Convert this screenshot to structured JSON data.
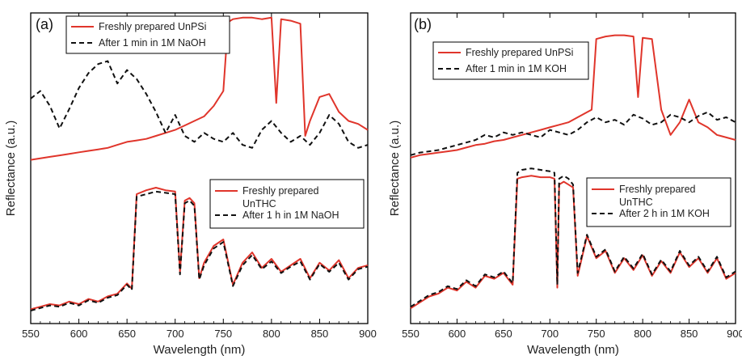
{
  "colors": {
    "fresh": "#e0352b",
    "treated": "#111111",
    "frame": "#000000"
  },
  "chart_data": [
    {
      "type": "line",
      "panel_label": "(a)",
      "xlabel": "Wavelength (nm)",
      "ylabel": "Reflectance (a.u.)",
      "xlim": [
        550,
        900
      ],
      "x_ticks": [
        "550",
        "600",
        "650",
        "700",
        "750",
        "800",
        "850",
        "900"
      ],
      "y_ticks_labeled": false,
      "groups": [
        {
          "position": "top",
          "legend": [
            "Freshly prepared UnPSi",
            "After 1 min in 1M NaOH"
          ],
          "series": [
            {
              "name": "Freshly prepared UnPSi",
              "style": "solid",
              "x": [
                550,
                560,
                570,
                580,
                590,
                600,
                610,
                620,
                630,
                640,
                650,
                660,
                670,
                680,
                690,
                700,
                710,
                720,
                730,
                740,
                750,
                755,
                760,
                770,
                780,
                790,
                800,
                805,
                810,
                820,
                830,
                835,
                840,
                850,
                860,
                870,
                880,
                890,
                900
              ],
              "y": [
                0.04,
                0.05,
                0.06,
                0.07,
                0.08,
                0.09,
                0.1,
                0.11,
                0.12,
                0.14,
                0.16,
                0.17,
                0.18,
                0.2,
                0.22,
                0.24,
                0.27,
                0.3,
                0.33,
                0.4,
                0.5,
                0.96,
                0.98,
                0.99,
                0.99,
                0.98,
                0.99,
                0.42,
                0.98,
                0.97,
                0.95,
                0.2,
                0.3,
                0.46,
                0.48,
                0.36,
                0.3,
                0.28,
                0.24
              ]
            },
            {
              "name": "After 1 min in 1M NaOH",
              "style": "dashed",
              "x": [
                550,
                560,
                570,
                580,
                590,
                600,
                610,
                620,
                630,
                640,
                650,
                660,
                670,
                680,
                690,
                700,
                710,
                720,
                730,
                740,
                750,
                760,
                770,
                780,
                790,
                800,
                810,
                820,
                830,
                840,
                850,
                860,
                870,
                880,
                890,
                900
              ],
              "y": [
                0.45,
                0.5,
                0.4,
                0.25,
                0.38,
                0.52,
                0.62,
                0.68,
                0.7,
                0.55,
                0.64,
                0.58,
                0.48,
                0.36,
                0.22,
                0.34,
                0.2,
                0.16,
                0.22,
                0.18,
                0.16,
                0.22,
                0.14,
                0.12,
                0.24,
                0.3,
                0.22,
                0.16,
                0.2,
                0.14,
                0.22,
                0.34,
                0.28,
                0.16,
                0.12,
                0.14
              ]
            }
          ]
        },
        {
          "position": "bottom",
          "legend": [
            "Freshly prepared UnTHC",
            "After 1 h in 1M NaOH"
          ],
          "series": [
            {
              "name": "Freshly prepared UnTHC",
              "style": "solid",
              "x": [
                550,
                560,
                570,
                580,
                590,
                600,
                610,
                620,
                630,
                640,
                650,
                655,
                660,
                670,
                680,
                690,
                700,
                705,
                710,
                715,
                720,
                725,
                730,
                740,
                750,
                760,
                770,
                780,
                790,
                800,
                810,
                820,
                830,
                840,
                850,
                860,
                870,
                880,
                890,
                900
              ],
              "y": [
                0.06,
                0.08,
                0.1,
                0.09,
                0.12,
                0.1,
                0.14,
                0.12,
                0.16,
                0.18,
                0.26,
                0.22,
                0.95,
                0.98,
                1.0,
                0.98,
                0.97,
                0.35,
                0.9,
                0.92,
                0.88,
                0.3,
                0.42,
                0.55,
                0.6,
                0.25,
                0.42,
                0.5,
                0.38,
                0.45,
                0.35,
                0.4,
                0.45,
                0.3,
                0.42,
                0.36,
                0.44,
                0.3,
                0.38,
                0.4
              ]
            },
            {
              "name": "After 1 h in 1M NaOH",
              "style": "dashed",
              "x": [
                550,
                560,
                570,
                580,
                590,
                600,
                610,
                620,
                630,
                640,
                650,
                655,
                660,
                670,
                680,
                690,
                700,
                705,
                710,
                715,
                720,
                725,
                730,
                740,
                750,
                760,
                770,
                780,
                790,
                800,
                810,
                820,
                830,
                840,
                850,
                860,
                870,
                880,
                890,
                900
              ],
              "y": [
                0.05,
                0.07,
                0.09,
                0.08,
                0.11,
                0.09,
                0.13,
                0.11,
                0.15,
                0.17,
                0.25,
                0.21,
                0.93,
                0.95,
                0.97,
                0.96,
                0.95,
                0.33,
                0.88,
                0.9,
                0.86,
                0.29,
                0.4,
                0.53,
                0.58,
                0.24,
                0.4,
                0.48,
                0.37,
                0.43,
                0.34,
                0.39,
                0.43,
                0.29,
                0.41,
                0.35,
                0.42,
                0.29,
                0.37,
                0.39
              ]
            }
          ]
        }
      ]
    },
    {
      "type": "line",
      "panel_label": "(b)",
      "xlabel": "Wavelength (nm)",
      "ylabel": "Reflectance (a.u.)",
      "xlim": [
        550,
        900
      ],
      "x_ticks": [
        "550",
        "600",
        "650",
        "700",
        "750",
        "800",
        "850",
        "900"
      ],
      "y_ticks_labeled": false,
      "groups": [
        {
          "position": "top",
          "legend": [
            "Freshly prepared UnPSi",
            "After 1 min in 1M KOH"
          ],
          "series": [
            {
              "name": "Freshly prepared UnPSi",
              "style": "solid",
              "x": [
                550,
                560,
                570,
                580,
                590,
                600,
                610,
                620,
                630,
                640,
                650,
                660,
                670,
                680,
                690,
                700,
                710,
                720,
                730,
                740,
                745,
                750,
                760,
                770,
                780,
                790,
                795,
                800,
                810,
                820,
                830,
                840,
                850,
                860,
                870,
                880,
                890,
                900
              ],
              "y": [
                0.02,
                0.04,
                0.05,
                0.06,
                0.07,
                0.08,
                0.1,
                0.12,
                0.13,
                0.15,
                0.16,
                0.18,
                0.2,
                0.22,
                0.24,
                0.26,
                0.28,
                0.3,
                0.34,
                0.38,
                0.4,
                0.96,
                0.98,
                0.99,
                0.99,
                0.98,
                0.5,
                0.97,
                0.96,
                0.4,
                0.2,
                0.3,
                0.48,
                0.3,
                0.26,
                0.2,
                0.18,
                0.16
              ]
            },
            {
              "name": "After 1 min in 1M KOH",
              "style": "dashed",
              "x": [
                550,
                560,
                570,
                580,
                590,
                600,
                610,
                620,
                630,
                640,
                650,
                660,
                670,
                680,
                690,
                700,
                710,
                720,
                730,
                740,
                750,
                760,
                770,
                780,
                790,
                800,
                810,
                820,
                830,
                840,
                850,
                860,
                870,
                880,
                890,
                900
              ],
              "y": [
                0.04,
                0.06,
                0.07,
                0.08,
                0.1,
                0.12,
                0.14,
                0.16,
                0.2,
                0.18,
                0.22,
                0.2,
                0.22,
                0.2,
                0.18,
                0.24,
                0.22,
                0.2,
                0.24,
                0.3,
                0.34,
                0.3,
                0.32,
                0.28,
                0.36,
                0.33,
                0.28,
                0.3,
                0.36,
                0.34,
                0.3,
                0.35,
                0.38,
                0.32,
                0.34,
                0.3
              ]
            }
          ]
        },
        {
          "position": "bottom",
          "legend": [
            "Freshly prepared UnTHC",
            "After 2 h in 1M KOH"
          ],
          "series": [
            {
              "name": "Freshly prepared UnTHC",
              "style": "solid",
              "x": [
                550,
                560,
                570,
                580,
                590,
                600,
                610,
                620,
                630,
                640,
                650,
                660,
                665,
                670,
                680,
                690,
                700,
                705,
                708,
                710,
                715,
                720,
                725,
                730,
                740,
                750,
                760,
                770,
                780,
                790,
                800,
                810,
                820,
                830,
                840,
                850,
                860,
                870,
                880,
                890,
                900
              ],
              "y": [
                0.06,
                0.1,
                0.14,
                0.16,
                0.2,
                0.18,
                0.24,
                0.2,
                0.28,
                0.26,
                0.3,
                0.22,
                0.94,
                0.95,
                0.96,
                0.95,
                0.95,
                0.94,
                0.2,
                0.9,
                0.92,
                0.9,
                0.88,
                0.28,
                0.55,
                0.4,
                0.45,
                0.3,
                0.4,
                0.32,
                0.42,
                0.28,
                0.38,
                0.3,
                0.44,
                0.34,
                0.4,
                0.3,
                0.4,
                0.26,
                0.3
              ]
            },
            {
              "name": "After 2 h in 1M KOH",
              "style": "dashed",
              "x": [
                550,
                560,
                570,
                580,
                590,
                600,
                610,
                620,
                630,
                640,
                650,
                660,
                665,
                670,
                680,
                690,
                700,
                705,
                708,
                710,
                715,
                720,
                725,
                730,
                740,
                750,
                760,
                770,
                780,
                790,
                800,
                810,
                820,
                830,
                840,
                850,
                860,
                870,
                880,
                890,
                900
              ],
              "y": [
                0.07,
                0.11,
                0.15,
                0.17,
                0.21,
                0.19,
                0.25,
                0.21,
                0.29,
                0.27,
                0.31,
                0.23,
                0.98,
                1.0,
                1.01,
                1.0,
                0.99,
                0.98,
                0.22,
                0.94,
                0.96,
                0.94,
                0.9,
                0.3,
                0.56,
                0.41,
                0.46,
                0.31,
                0.41,
                0.33,
                0.43,
                0.29,
                0.39,
                0.31,
                0.45,
                0.35,
                0.41,
                0.31,
                0.41,
                0.27,
                0.31
              ]
            }
          ]
        }
      ]
    }
  ]
}
